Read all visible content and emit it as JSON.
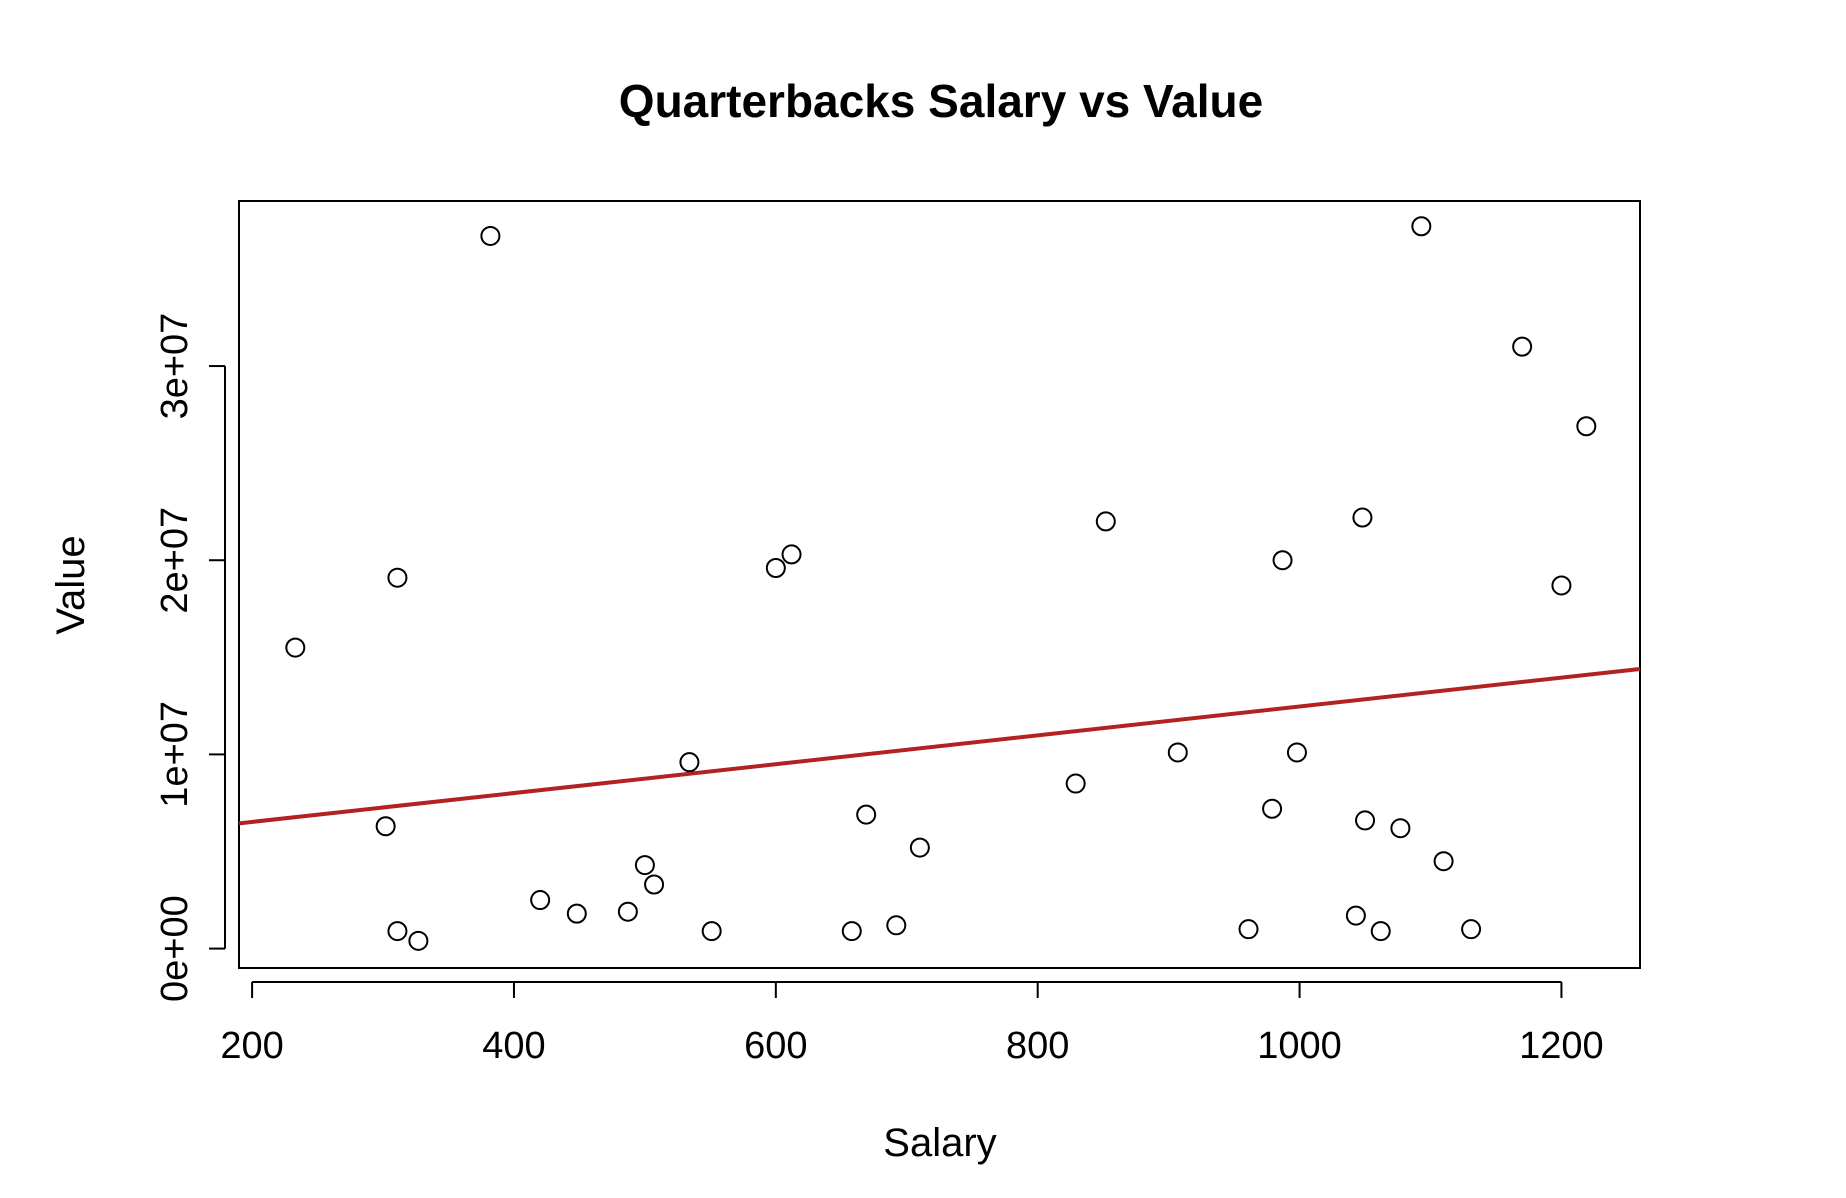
{
  "chart_data": {
    "type": "scatter",
    "title": "Quarterbacks Salary vs Value",
    "xlabel": "Salary",
    "ylabel": "Value",
    "xlim": [
      190,
      1260
    ],
    "ylim": [
      -1000000,
      38500000
    ],
    "x_ticks": [
      {
        "value": 200,
        "label": "200"
      },
      {
        "value": 400,
        "label": "400"
      },
      {
        "value": 600,
        "label": "600"
      },
      {
        "value": 800,
        "label": "800"
      },
      {
        "value": 1000,
        "label": "1000"
      },
      {
        "value": 1200,
        "label": "1200"
      }
    ],
    "y_ticks": [
      {
        "value": 0,
        "label": "0e+00"
      },
      {
        "value": 10000000,
        "label": "1e+07"
      },
      {
        "value": 20000000,
        "label": "2e+07"
      },
      {
        "value": 30000000,
        "label": "3e+07"
      }
    ],
    "grid": false,
    "points": [
      {
        "x": 233,
        "y": 15500000
      },
      {
        "x": 302,
        "y": 6300000
      },
      {
        "x": 311,
        "y": 19100000
      },
      {
        "x": 311,
        "y": 900000
      },
      {
        "x": 327,
        "y": 400000
      },
      {
        "x": 382,
        "y": 36700000
      },
      {
        "x": 420,
        "y": 2500000
      },
      {
        "x": 448,
        "y": 1800000
      },
      {
        "x": 487,
        "y": 1900000
      },
      {
        "x": 500,
        "y": 4300000
      },
      {
        "x": 507,
        "y": 3300000
      },
      {
        "x": 534,
        "y": 9600000
      },
      {
        "x": 551,
        "y": 900000
      },
      {
        "x": 600,
        "y": 19600000
      },
      {
        "x": 612,
        "y": 20300000
      },
      {
        "x": 658,
        "y": 900000
      },
      {
        "x": 669,
        "y": 6900000
      },
      {
        "x": 692,
        "y": 1200000
      },
      {
        "x": 710,
        "y": 5200000
      },
      {
        "x": 829,
        "y": 8500000
      },
      {
        "x": 852,
        "y": 22000000
      },
      {
        "x": 907,
        "y": 10100000
      },
      {
        "x": 961,
        "y": 1000000
      },
      {
        "x": 979,
        "y": 7200000
      },
      {
        "x": 987,
        "y": 20000000
      },
      {
        "x": 998,
        "y": 10100000
      },
      {
        "x": 1043,
        "y": 1700000
      },
      {
        "x": 1048,
        "y": 22200000
      },
      {
        "x": 1050,
        "y": 6600000
      },
      {
        "x": 1062,
        "y": 900000
      },
      {
        "x": 1077,
        "y": 6200000
      },
      {
        "x": 1093,
        "y": 37200000
      },
      {
        "x": 1110,
        "y": 4500000
      },
      {
        "x": 1131,
        "y": 1000000
      },
      {
        "x": 1170,
        "y": 31000000
      },
      {
        "x": 1200,
        "y": 18700000
      },
      {
        "x": 1219,
        "y": 26900000
      }
    ],
    "regression_line": {
      "color": "#b22222",
      "points": [
        {
          "x": 190,
          "y": 6450000
        },
        {
          "x": 1260,
          "y": 14400000
        }
      ]
    },
    "point_color": "#000000"
  }
}
